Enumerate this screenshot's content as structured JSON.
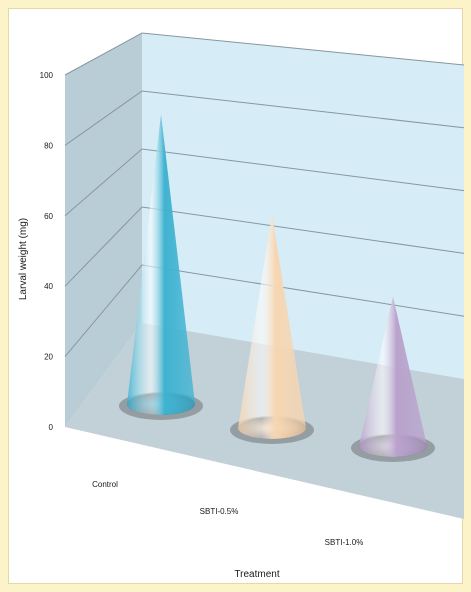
{
  "chart_data": {
    "type": "bar",
    "style": "3d-cone",
    "categories": [
      "Control",
      "SBTI-0.5%",
      "SBTI-1.0%"
    ],
    "values": [
      95,
      70,
      49
    ],
    "xlabel": "Treatment",
    "ylabel": "Larval weight (mg)",
    "yticks": [
      "0",
      "20",
      "40",
      "60",
      "80",
      "100"
    ],
    "ylim": [
      0,
      100
    ],
    "grid": true,
    "legend": "none",
    "colors": {
      "frame_background": "#fdf3c8",
      "back_wall": "#d6ecf7",
      "side_wall": "#b9cdd7",
      "floor": "#c2d0d8",
      "gridline": "#8796a1",
      "cones": [
        "#3fb3d1",
        "#f6d6b2",
        "#b9a2cc"
      ]
    }
  }
}
